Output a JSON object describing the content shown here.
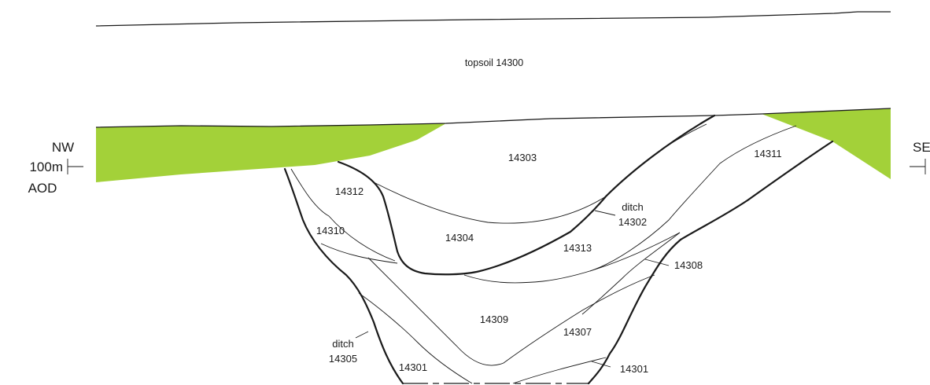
{
  "colors": {
    "turf": "#a3d139",
    "line": "#1a1a1a",
    "background": "#ffffff"
  },
  "orientation": {
    "left": "NW",
    "right": "SE",
    "datum_value": "100m",
    "datum_unit": "AOD"
  },
  "layers": {
    "topsoil": "topsoil 14300",
    "c14303": "14303",
    "c14311": "14311",
    "c14312": "14312",
    "c14310": "14310",
    "c14304": "14304",
    "ditch_14302_a": "ditch",
    "ditch_14302_b": "14302",
    "c14313": "14313",
    "c14308": "14308",
    "c14309": "14309",
    "c14307": "14307",
    "ditch_14305_a": "ditch",
    "ditch_14305_b": "14305",
    "c14301_left": "14301",
    "c14301_right": "14301"
  }
}
